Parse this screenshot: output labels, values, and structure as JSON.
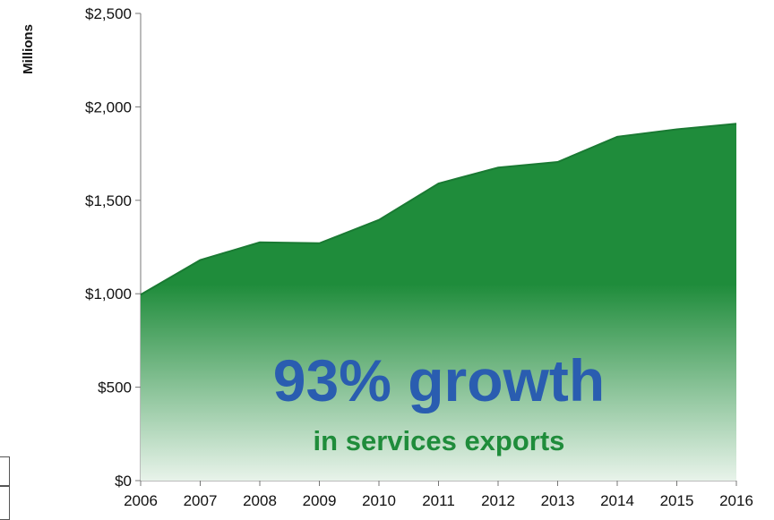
{
  "chart_data": {
    "type": "area",
    "x": [
      "2006",
      "2007",
      "2008",
      "2009",
      "2010",
      "2011",
      "2012",
      "2013",
      "2014",
      "2015",
      "2016"
    ],
    "series": [
      {
        "values": [
          995,
          1180,
          1275,
          1270,
          1395,
          1590,
          1675,
          1705,
          1840,
          1880,
          1910
        ]
      }
    ],
    "ylabel": "Millions",
    "yticks": [
      "$0",
      "$500",
      "$1,000",
      "$1,500",
      "$2,000",
      "$2,500"
    ],
    "ylim": [
      0,
      2500
    ],
    "grid": false,
    "colors": {
      "area": "#1f8c3b",
      "area_fade": "#e8f3ea",
      "headline": "#2a5db0",
      "subline": "#1f8c3b"
    }
  },
  "annotation": {
    "headline": "93% growth",
    "subline": "in services exports"
  }
}
